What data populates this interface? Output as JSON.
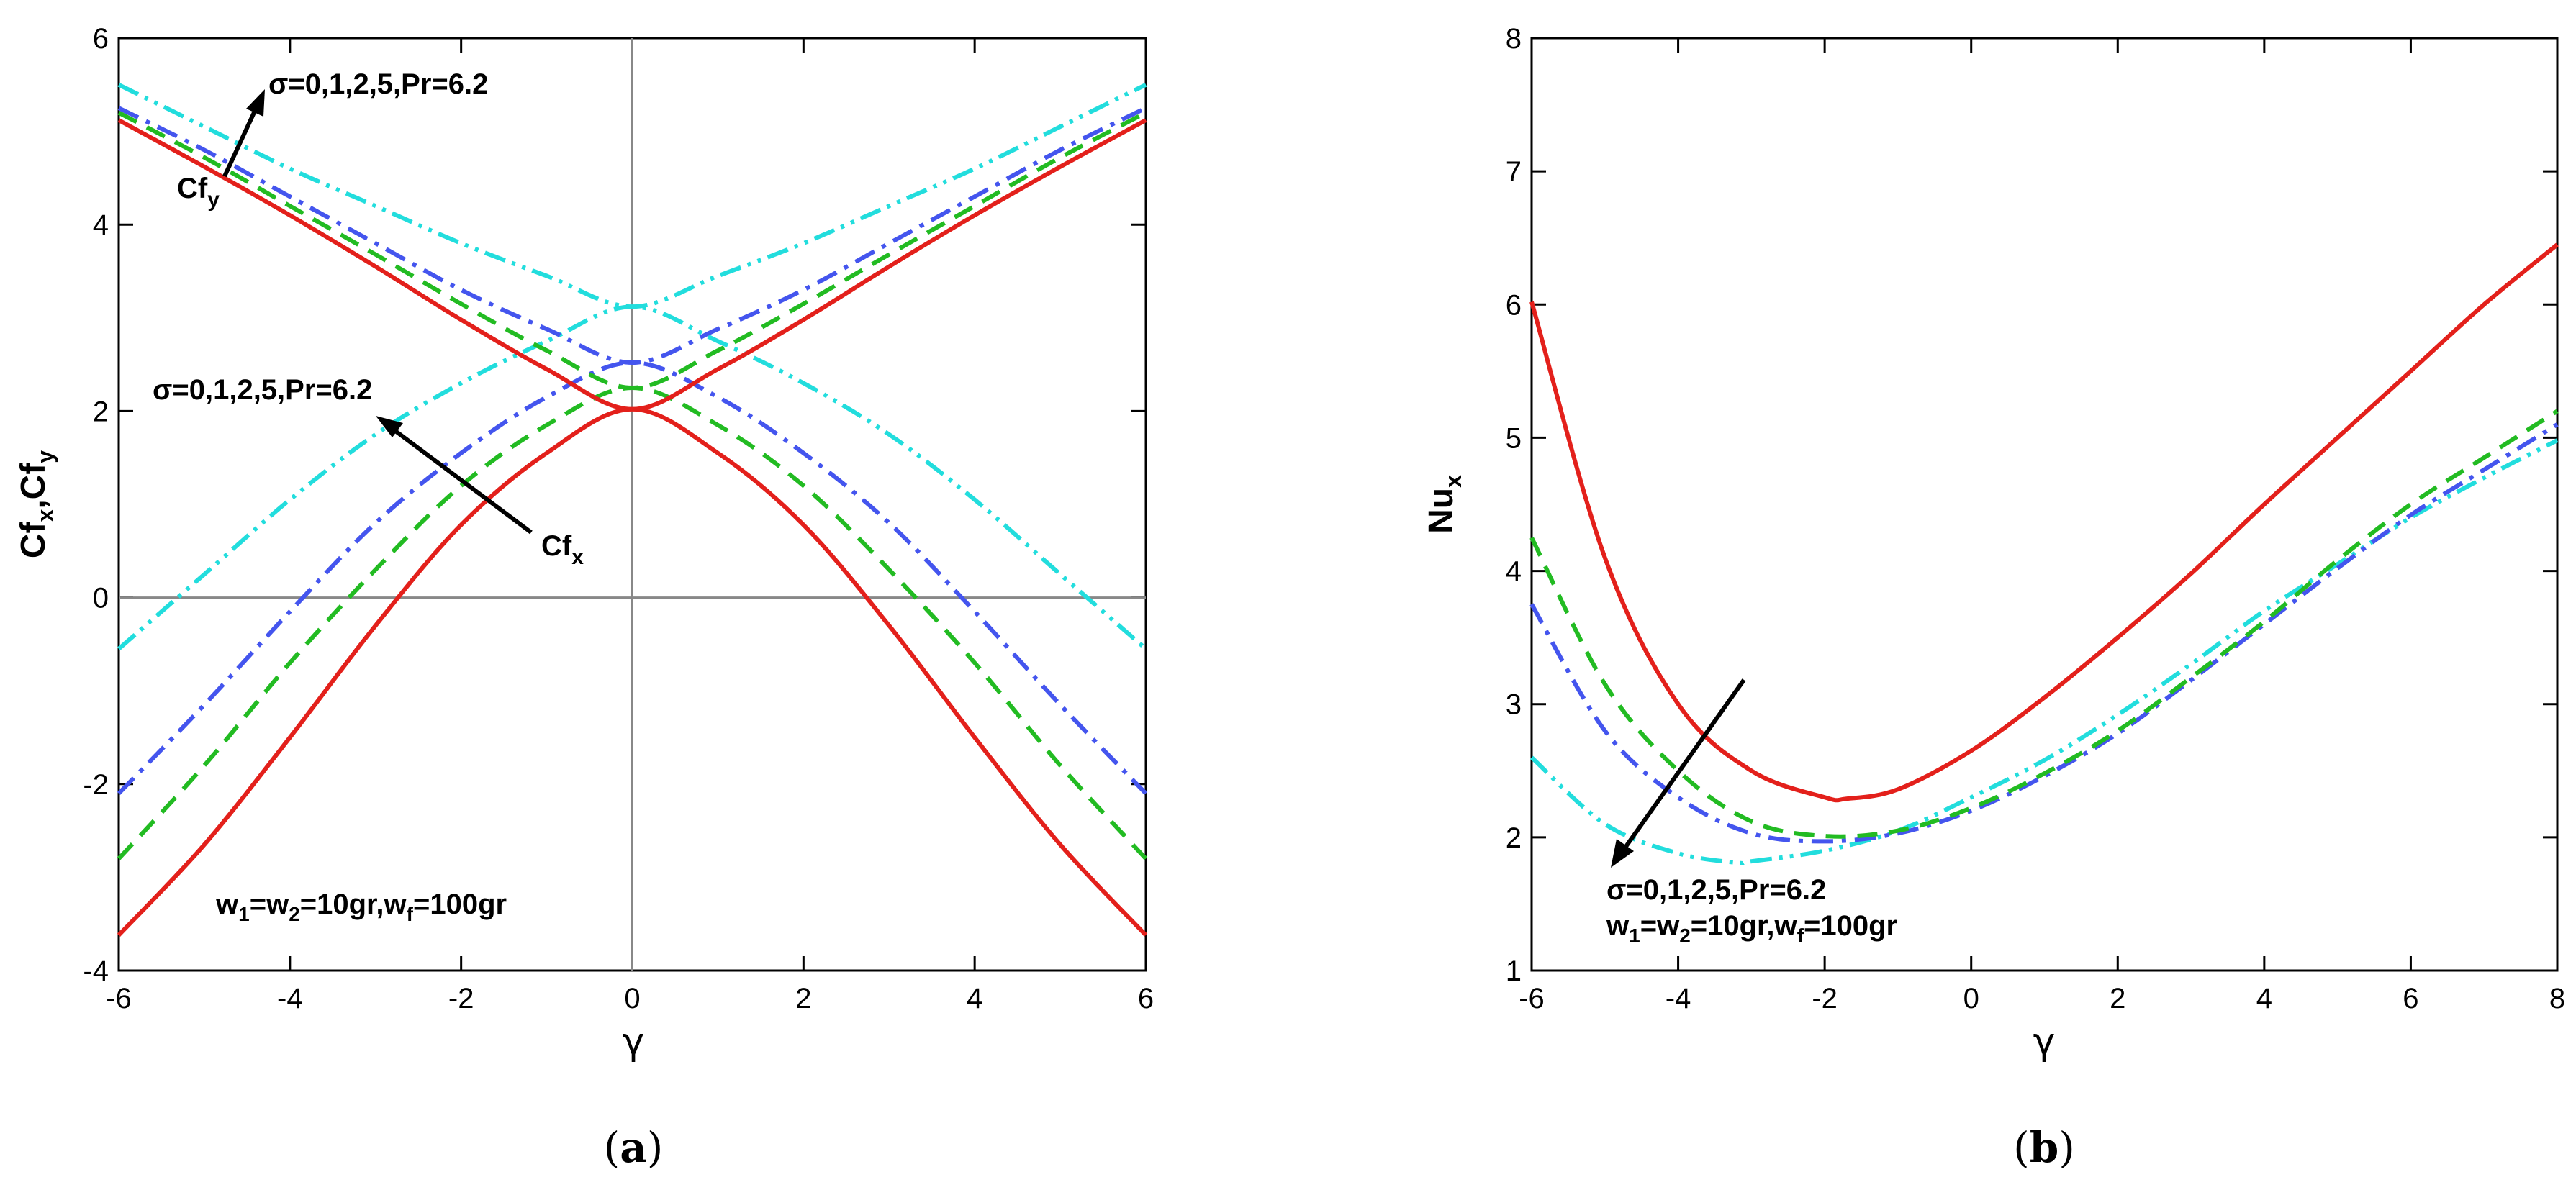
{
  "chart_data": [
    {
      "panel": "a",
      "type": "line",
      "caption": {
        "open": "(",
        "letter": "a",
        "close": ")"
      },
      "xlabel": "γ",
      "ylabel": {
        "p1": "Cf",
        "s1": "x",
        "p2": ",Cf",
        "s2": "y"
      },
      "xlim": [
        -6,
        6
      ],
      "ylim": [
        -4,
        6
      ],
      "xticks": [
        "-6",
        "-4",
        "-2",
        "0",
        "2",
        "4",
        "6"
      ],
      "yticks": [
        "-4",
        "-2",
        "0",
        "2",
        "4",
        "6"
      ],
      "annotations": {
        "cfy_params": "σ=0,1,2,5,Pr=6.2",
        "cfy_label": {
          "main": "Cf",
          "sub": "y"
        },
        "cfx_params": "σ=0,1,2,5,Pr=6.2",
        "cfx_label": {
          "main": "Cf",
          "sub": "x"
        },
        "weights": {
          "t1": "w",
          "s1": "1",
          "t2": "=w",
          "s2": "2",
          "t3": "=10gr,w",
          "s3": "f",
          "t4": "=100gr"
        }
      },
      "series": [
        {
          "name": "σ=0",
          "color": "#e3201b",
          "dash": "solid",
          "cfx": {
            "x": [
              -6,
              -5,
              -4,
              -3,
              -2,
              -1,
              0,
              1,
              2,
              3,
              4,
              5,
              6
            ],
            "y": [
              -3.62,
              -2.65,
              -1.5,
              -0.3,
              0.78,
              1.55,
              2.02,
              1.55,
              0.78,
              -0.3,
              -1.5,
              -2.65,
              -3.62
            ]
          },
          "cfy": {
            "x": [
              -6,
              -5,
              -4,
              -3,
              -2,
              -1,
              0,
              1,
              2,
              3,
              4,
              5,
              6
            ],
            "y": [
              5.12,
              4.62,
              4.1,
              3.55,
              2.98,
              2.45,
              2.02,
              2.45,
              2.98,
              3.55,
              4.1,
              4.62,
              5.12
            ]
          }
        },
        {
          "name": "σ=1",
          "color": "#22bb22",
          "dash": "dash",
          "cfx": {
            "x": [
              -6,
              -5,
              -4,
              -3,
              -2,
              -1,
              0,
              1,
              2,
              3,
              4,
              5,
              6
            ],
            "y": [
              -2.8,
              -1.8,
              -0.7,
              0.3,
              1.2,
              1.85,
              2.25,
              1.85,
              1.2,
              0.3,
              -0.7,
              -1.8,
              -2.8
            ]
          },
          "cfy": {
            "x": [
              -6,
              -5,
              -4,
              -3,
              -2,
              -1,
              0,
              1,
              2,
              3,
              4,
              5,
              6
            ],
            "y": [
              5.2,
              4.72,
              4.2,
              3.68,
              3.15,
              2.65,
              2.25,
              2.65,
              3.15,
              3.68,
              4.2,
              4.72,
              5.2
            ]
          }
        },
        {
          "name": "σ=2",
          "color": "#4455ee",
          "dash": "dashdot",
          "cfx": {
            "x": [
              -6,
              -5,
              -4,
              -3,
              -2,
              -1,
              0,
              1,
              2,
              3,
              4,
              5,
              6
            ],
            "y": [
              -2.1,
              -1.15,
              -0.15,
              0.8,
              1.55,
              2.15,
              2.52,
              2.15,
              1.55,
              0.8,
              -0.15,
              -1.15,
              -2.1
            ]
          },
          "cfy": {
            "x": [
              -6,
              -5,
              -4,
              -3,
              -2,
              -1,
              0,
              1,
              2,
              3,
              4,
              5,
              6
            ],
            "y": [
              5.25,
              4.8,
              4.3,
              3.8,
              3.3,
              2.88,
              2.52,
              2.88,
              3.3,
              3.8,
              4.3,
              4.8,
              5.25
            ]
          }
        },
        {
          "name": "σ=5",
          "color": "#22dddd",
          "dash": "dashdotdot",
          "cfx": {
            "x": [
              -6,
              -5,
              -4,
              -3,
              -2,
              -1,
              0,
              1,
              2,
              3,
              4,
              5,
              6
            ],
            "y": [
              -0.55,
              0.25,
              1.05,
              1.75,
              2.3,
              2.75,
              3.12,
              2.75,
              2.3,
              1.75,
              1.05,
              0.25,
              -0.55
            ]
          },
          "cfy": {
            "x": [
              -6,
              -5,
              -4,
              -3,
              -2,
              -1,
              0,
              1,
              2,
              3,
              4,
              5,
              6
            ],
            "y": [
              5.5,
              5.05,
              4.6,
              4.2,
              3.8,
              3.45,
              3.12,
              3.45,
              3.8,
              4.2,
              4.6,
              5.05,
              5.5
            ]
          }
        }
      ]
    },
    {
      "panel": "b",
      "type": "line",
      "caption": {
        "open": "(",
        "letter": "b",
        "close": ")"
      },
      "xlabel": "γ",
      "ylabel": {
        "main": "Nu",
        "sub": "x"
      },
      "xlim": [
        -6,
        8
      ],
      "ylim": [
        1,
        8
      ],
      "xticks": [
        "-6",
        "-4",
        "-2",
        "0",
        "2",
        "4",
        "6",
        "8"
      ],
      "yticks": [
        "1",
        "2",
        "3",
        "4",
        "5",
        "6",
        "7",
        "8"
      ],
      "annotations": {
        "params": "σ=0,1,2,5,Pr=6.2",
        "weights": {
          "t1": "w",
          "s1": "1",
          "t2": "=w",
          "s2": "2",
          "t3": "=10gr,w",
          "s3": "f",
          "t4": "=100gr"
        }
      },
      "series": [
        {
          "name": "σ=0",
          "color": "#e3201b",
          "dash": "solid",
          "x": [
            -6,
            -5,
            -4,
            -3,
            -2,
            -1.7,
            -1,
            0,
            1,
            2,
            3,
            4,
            5,
            6,
            7,
            8
          ],
          "y": [
            6.02,
            4.1,
            3.0,
            2.5,
            2.3,
            2.29,
            2.36,
            2.65,
            3.05,
            3.5,
            3.98,
            4.5,
            5.0,
            5.5,
            6.0,
            6.45
          ]
        },
        {
          "name": "σ=1",
          "color": "#22bb22",
          "dash": "dash",
          "x": [
            -6,
            -5,
            -4,
            -3,
            -2,
            -1,
            0,
            1,
            2,
            3,
            4,
            5,
            6,
            7,
            8
          ],
          "y": [
            4.25,
            3.15,
            2.5,
            2.12,
            2.01,
            2.05,
            2.22,
            2.48,
            2.8,
            3.2,
            3.62,
            4.08,
            4.5,
            4.85,
            5.2
          ]
        },
        {
          "name": "σ=2",
          "color": "#4455ee",
          "dash": "dashdot",
          "x": [
            -6,
            -5,
            -4,
            -3,
            -2,
            -1,
            0,
            1,
            2,
            3,
            4,
            5,
            6,
            7,
            8
          ],
          "y": [
            3.75,
            2.8,
            2.3,
            2.03,
            1.97,
            2.03,
            2.2,
            2.46,
            2.78,
            3.18,
            3.6,
            4.02,
            4.42,
            4.76,
            5.1
          ]
        },
        {
          "name": "σ=5",
          "color": "#22dddd",
          "dash": "dashdotdot",
          "x": [
            -6,
            -5,
            -4,
            -3.2,
            -3,
            -2,
            -1,
            0,
            1,
            2,
            3,
            4,
            5,
            6,
            7,
            8
          ],
          "y": [
            2.6,
            2.1,
            1.88,
            1.81,
            1.82,
            1.9,
            2.05,
            2.3,
            2.58,
            2.92,
            3.3,
            3.7,
            4.05,
            4.4,
            4.7,
            4.98
          ]
        }
      ]
    }
  ]
}
